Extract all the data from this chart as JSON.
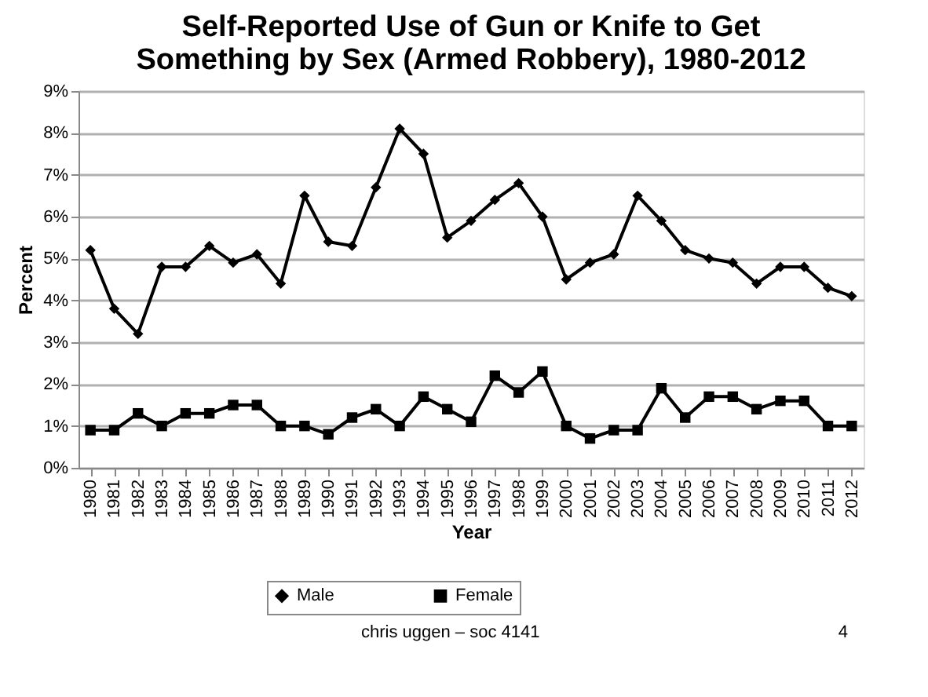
{
  "chart_data": {
    "type": "line",
    "title": "Self-Reported Use of Gun or Knife to Get\nSomething by Sex (Armed Robbery), 1980-2012",
    "xlabel": "Year",
    "ylabel": "Percent",
    "categories": [
      "1980",
      "1981",
      "1982",
      "1983",
      "1984",
      "1985",
      "1986",
      "1987",
      "1988",
      "1989",
      "1990",
      "1991",
      "1992",
      "1993",
      "1994",
      "1995",
      "1996",
      "1997",
      "1998",
      "1999",
      "2000",
      "2001",
      "2002",
      "2003",
      "2004",
      "2005",
      "2006",
      "2007",
      "2008",
      "2009",
      "2010",
      "2011",
      "2012"
    ],
    "series": [
      {
        "name": "Male",
        "color": "#000000",
        "marker": "diamond",
        "values": [
          5.2,
          3.8,
          3.2,
          4.8,
          4.8,
          5.3,
          4.9,
          5.1,
          4.4,
          6.5,
          5.4,
          5.3,
          6.7,
          8.1,
          7.5,
          5.5,
          5.9,
          6.4,
          6.8,
          6.0,
          4.5,
          4.9,
          5.1,
          6.5,
          5.9,
          5.2,
          5.0,
          4.9,
          4.4,
          4.8,
          4.8,
          4.3,
          4.1
        ]
      },
      {
        "name": "Female",
        "color": "#000000",
        "marker": "square",
        "values": [
          0.9,
          0.9,
          1.3,
          1.0,
          1.3,
          1.3,
          1.5,
          1.5,
          1.0,
          1.0,
          0.8,
          1.2,
          1.4,
          1.0,
          1.7,
          1.4,
          1.1,
          2.2,
          1.8,
          2.3,
          1.0,
          0.7,
          0.9,
          0.9,
          1.9,
          1.2,
          1.7,
          1.7,
          1.4,
          1.6,
          1.6,
          1.0,
          1.0
        ]
      }
    ],
    "ylim": [
      0,
      9
    ],
    "yticks": [
      {
        "value": 0,
        "label": "0%"
      },
      {
        "value": 1,
        "label": "1%"
      },
      {
        "value": 2,
        "label": "2%"
      },
      {
        "value": 3,
        "label": "3%"
      },
      {
        "value": 4,
        "label": "4%"
      },
      {
        "value": 5,
        "label": "5%"
      },
      {
        "value": 6,
        "label": "6%"
      },
      {
        "value": 7,
        "label": "7%"
      },
      {
        "value": 8,
        "label": "8%"
      },
      {
        "value": 9,
        "label": "9%"
      }
    ],
    "grid": "y",
    "legend": "bottom",
    "line_style": "solid",
    "annotations": [
      "chris uggen – soc 4141",
      "4"
    ]
  }
}
